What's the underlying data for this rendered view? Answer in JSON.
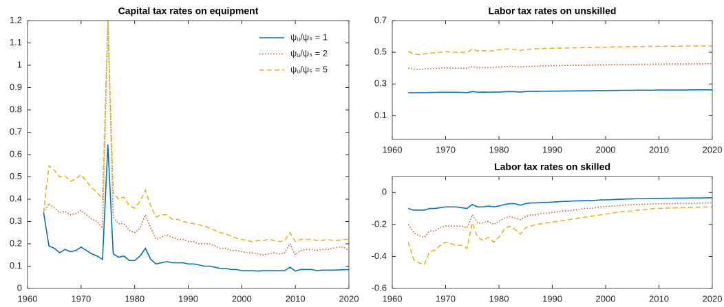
{
  "chart_data": [
    {
      "type": "line",
      "title": "Capital tax rates on equipment",
      "legend": "northeast",
      "x": [
        1963,
        1964,
        1965,
        1966,
        1967,
        1968,
        1969,
        1970,
        1971,
        1972,
        1973,
        1974,
        1975,
        1976,
        1977,
        1978,
        1979,
        1980,
        1981,
        1982,
        1983,
        1984,
        1985,
        1986,
        1987,
        1988,
        1989,
        1990,
        1991,
        1992,
        1993,
        1994,
        1995,
        1996,
        1997,
        1998,
        1999,
        2000,
        2001,
        2002,
        2003,
        2004,
        2005,
        2006,
        2007,
        2008,
        2009,
        2010,
        2011,
        2012,
        2013,
        2014,
        2015,
        2016,
        2017,
        2018,
        2019,
        2020
      ],
      "xlim": [
        1960,
        2020
      ],
      "xticks": [
        1960,
        1970,
        1980,
        1990,
        2000,
        2010,
        2020
      ],
      "ylim": [
        0,
        1.2
      ],
      "yticks": [
        0,
        0.1,
        0.2,
        0.3,
        0.4,
        0.5,
        0.6,
        0.7,
        0.8,
        0.9,
        1,
        1.1,
        1.2
      ],
      "series": [
        {
          "name": "ψᵤ/ψₛ = 1",
          "color": "#0072BD",
          "style": "solid",
          "values": [
            0.34,
            0.19,
            0.18,
            0.16,
            0.175,
            0.165,
            0.17,
            0.185,
            0.17,
            0.155,
            0.145,
            0.13,
            0.645,
            0.155,
            0.14,
            0.145,
            0.125,
            0.125,
            0.145,
            0.18,
            0.13,
            0.11,
            0.115,
            0.12,
            0.115,
            0.115,
            0.115,
            0.11,
            0.11,
            0.105,
            0.1,
            0.1,
            0.095,
            0.09,
            0.09,
            0.085,
            0.085,
            0.08,
            0.08,
            0.08,
            0.078,
            0.08,
            0.08,
            0.08,
            0.08,
            0.08,
            0.095,
            0.078,
            0.085,
            0.085,
            0.085,
            0.08,
            0.082,
            0.082,
            0.082,
            0.083,
            0.084,
            0.085
          ]
        },
        {
          "name": "ψᵤ/ψₛ = 2",
          "color": "#D95319",
          "style": "dotted",
          "values": [
            0.34,
            0.38,
            0.36,
            0.34,
            0.345,
            0.33,
            0.335,
            0.35,
            0.33,
            0.31,
            0.3,
            0.27,
            1.2,
            0.32,
            0.29,
            0.29,
            0.26,
            0.25,
            0.27,
            0.33,
            0.27,
            0.22,
            0.23,
            0.24,
            0.23,
            0.22,
            0.22,
            0.21,
            0.21,
            0.2,
            0.2,
            0.2,
            0.19,
            0.18,
            0.18,
            0.17,
            0.17,
            0.165,
            0.16,
            0.16,
            0.155,
            0.15,
            0.155,
            0.16,
            0.155,
            0.16,
            0.2,
            0.15,
            0.17,
            0.175,
            0.175,
            0.17,
            0.175,
            0.175,
            0.18,
            0.185,
            0.185,
            0.17
          ]
        },
        {
          "name": "ψᵤ/ψₛ = 5",
          "color": "#EDB120",
          "style": "dashed",
          "values": [
            0.34,
            0.55,
            0.53,
            0.5,
            0.505,
            0.48,
            0.49,
            0.51,
            0.48,
            0.45,
            0.43,
            0.4,
            1.2,
            0.43,
            0.4,
            0.41,
            0.37,
            0.36,
            0.39,
            0.44,
            0.37,
            0.32,
            0.33,
            0.33,
            0.31,
            0.31,
            0.3,
            0.295,
            0.29,
            0.285,
            0.28,
            0.27,
            0.26,
            0.25,
            0.245,
            0.235,
            0.225,
            0.22,
            0.215,
            0.21,
            0.215,
            0.215,
            0.22,
            0.215,
            0.21,
            0.215,
            0.25,
            0.21,
            0.22,
            0.22,
            0.22,
            0.215,
            0.215,
            0.22,
            0.215,
            0.215,
            0.22,
            0.22
          ]
        }
      ]
    },
    {
      "type": "line",
      "title": "Labor tax rates on unskilled",
      "x": [
        1963,
        1964,
        1965,
        1966,
        1967,
        1968,
        1969,
        1970,
        1971,
        1972,
        1973,
        1974,
        1975,
        1976,
        1977,
        1978,
        1979,
        1980,
        1981,
        1982,
        1983,
        1984,
        1985,
        1986,
        1987,
        1988,
        1989,
        1990,
        1991,
        1992,
        1993,
        1994,
        1995,
        1996,
        1997,
        1998,
        1999,
        2000,
        2001,
        2002,
        2003,
        2004,
        2005,
        2006,
        2007,
        2008,
        2009,
        2010,
        2011,
        2012,
        2013,
        2014,
        2015,
        2016,
        2017,
        2018,
        2019,
        2020
      ],
      "xlim": [
        1960,
        2020
      ],
      "xticks": [
        1960,
        1970,
        1980,
        1990,
        2000,
        2010,
        2020
      ],
      "ylim": [
        -0.05,
        0.7
      ],
      "yticks": [
        0.1,
        0.3,
        0.5,
        0.7
      ],
      "series": [
        {
          "color": "#0072BD",
          "style": "solid",
          "values": [
            0.245,
            0.244,
            0.245,
            0.245,
            0.246,
            0.247,
            0.248,
            0.248,
            0.248,
            0.248,
            0.247,
            0.245,
            0.252,
            0.248,
            0.249,
            0.248,
            0.249,
            0.249,
            0.251,
            0.252,
            0.251,
            0.249,
            0.252,
            0.253,
            0.253,
            0.254,
            0.254,
            0.255,
            0.255,
            0.256,
            0.256,
            0.256,
            0.257,
            0.257,
            0.257,
            0.258,
            0.258,
            0.258,
            0.259,
            0.259,
            0.26,
            0.26,
            0.26,
            0.261,
            0.261,
            0.261,
            0.261,
            0.262,
            0.262,
            0.262,
            0.262,
            0.262,
            0.262,
            0.263,
            0.263,
            0.263,
            0.263,
            0.263
          ]
        },
        {
          "color": "#D95319",
          "style": "dotted",
          "values": [
            0.4,
            0.395,
            0.392,
            0.395,
            0.397,
            0.398,
            0.4,
            0.402,
            0.4,
            0.4,
            0.4,
            0.398,
            0.41,
            0.402,
            0.404,
            0.403,
            0.405,
            0.407,
            0.41,
            0.412,
            0.41,
            0.407,
            0.41,
            0.412,
            0.413,
            0.414,
            0.414,
            0.415,
            0.416,
            0.416,
            0.417,
            0.418,
            0.418,
            0.419,
            0.419,
            0.42,
            0.42,
            0.421,
            0.421,
            0.422,
            0.422,
            0.423,
            0.423,
            0.424,
            0.424,
            0.424,
            0.425,
            0.425,
            0.425,
            0.426,
            0.426,
            0.426,
            0.426,
            0.427,
            0.427,
            0.427,
            0.428,
            0.428
          ]
        },
        {
          "color": "#EDB120",
          "style": "dashed",
          "values": [
            0.505,
            0.49,
            0.485,
            0.49,
            0.495,
            0.497,
            0.5,
            0.505,
            0.5,
            0.5,
            0.5,
            0.498,
            0.52,
            0.508,
            0.51,
            0.508,
            0.51,
            0.515,
            0.52,
            0.522,
            0.518,
            0.512,
            0.518,
            0.52,
            0.522,
            0.523,
            0.524,
            0.525,
            0.526,
            0.527,
            0.528,
            0.528,
            0.529,
            0.53,
            0.53,
            0.531,
            0.532,
            0.532,
            0.533,
            0.534,
            0.534,
            0.535,
            0.535,
            0.536,
            0.536,
            0.537,
            0.537,
            0.538,
            0.538,
            0.538,
            0.539,
            0.539,
            0.539,
            0.54,
            0.54,
            0.54,
            0.54,
            0.54
          ]
        }
      ]
    },
    {
      "type": "line",
      "title": "Labor tax rates on skilled",
      "x": [
        1963,
        1964,
        1965,
        1966,
        1967,
        1968,
        1969,
        1970,
        1971,
        1972,
        1973,
        1974,
        1975,
        1976,
        1977,
        1978,
        1979,
        1980,
        1981,
        1982,
        1983,
        1984,
        1985,
        1986,
        1987,
        1988,
        1989,
        1990,
        1991,
        1992,
        1993,
        1994,
        1995,
        1996,
        1997,
        1998,
        1999,
        2000,
        2001,
        2002,
        2003,
        2004,
        2005,
        2006,
        2007,
        2008,
        2009,
        2010,
        2011,
        2012,
        2013,
        2014,
        2015,
        2016,
        2017,
        2018,
        2019,
        2020
      ],
      "xlim": [
        1960,
        2020
      ],
      "xticks": [
        1960,
        1970,
        1980,
        1990,
        2000,
        2010,
        2020
      ],
      "ylim": [
        -0.6,
        0.1
      ],
      "yticks": [
        -0.6,
        -0.4,
        -0.2,
        0
      ],
      "series": [
        {
          "color": "#0072BD",
          "style": "solid",
          "values": [
            -0.1,
            -0.11,
            -0.11,
            -0.11,
            -0.1,
            -0.1,
            -0.095,
            -0.09,
            -0.09,
            -0.09,
            -0.095,
            -0.1,
            -0.075,
            -0.09,
            -0.09,
            -0.085,
            -0.09,
            -0.085,
            -0.075,
            -0.07,
            -0.07,
            -0.08,
            -0.07,
            -0.065,
            -0.065,
            -0.063,
            -0.062,
            -0.06,
            -0.058,
            -0.056,
            -0.055,
            -0.053,
            -0.052,
            -0.051,
            -0.05,
            -0.049,
            -0.047,
            -0.046,
            -0.045,
            -0.043,
            -0.042,
            -0.041,
            -0.04,
            -0.039,
            -0.039,
            -0.038,
            -0.037,
            -0.037,
            -0.036,
            -0.036,
            -0.035,
            -0.035,
            -0.035,
            -0.034,
            -0.034,
            -0.034,
            -0.033,
            -0.033
          ]
        },
        {
          "color": "#D95319",
          "style": "dotted",
          "values": [
            -0.2,
            -0.25,
            -0.27,
            -0.28,
            -0.24,
            -0.24,
            -0.22,
            -0.21,
            -0.21,
            -0.21,
            -0.21,
            -0.22,
            -0.14,
            -0.19,
            -0.19,
            -0.18,
            -0.2,
            -0.18,
            -0.16,
            -0.15,
            -0.16,
            -0.17,
            -0.15,
            -0.14,
            -0.14,
            -0.13,
            -0.13,
            -0.125,
            -0.12,
            -0.115,
            -0.115,
            -0.11,
            -0.105,
            -0.1,
            -0.1,
            -0.095,
            -0.09,
            -0.088,
            -0.085,
            -0.083,
            -0.08,
            -0.078,
            -0.076,
            -0.075,
            -0.074,
            -0.073,
            -0.072,
            -0.071,
            -0.07,
            -0.07,
            -0.069,
            -0.068,
            -0.068,
            -0.067,
            -0.067,
            -0.066,
            -0.066,
            -0.065
          ]
        },
        {
          "color": "#EDB120",
          "style": "dashed",
          "values": [
            -0.31,
            -0.42,
            -0.44,
            -0.45,
            -0.37,
            -0.36,
            -0.33,
            -0.31,
            -0.32,
            -0.33,
            -0.33,
            -0.35,
            -0.19,
            -0.28,
            -0.3,
            -0.28,
            -0.31,
            -0.28,
            -0.23,
            -0.21,
            -0.23,
            -0.26,
            -0.22,
            -0.21,
            -0.2,
            -0.195,
            -0.19,
            -0.185,
            -0.18,
            -0.175,
            -0.17,
            -0.165,
            -0.16,
            -0.155,
            -0.15,
            -0.145,
            -0.14,
            -0.135,
            -0.13,
            -0.125,
            -0.12,
            -0.118,
            -0.115,
            -0.11,
            -0.108,
            -0.105,
            -0.1,
            -0.1,
            -0.098,
            -0.097,
            -0.096,
            -0.095,
            -0.094,
            -0.093,
            -0.092,
            -0.091,
            -0.091,
            -0.09
          ]
        }
      ]
    }
  ]
}
